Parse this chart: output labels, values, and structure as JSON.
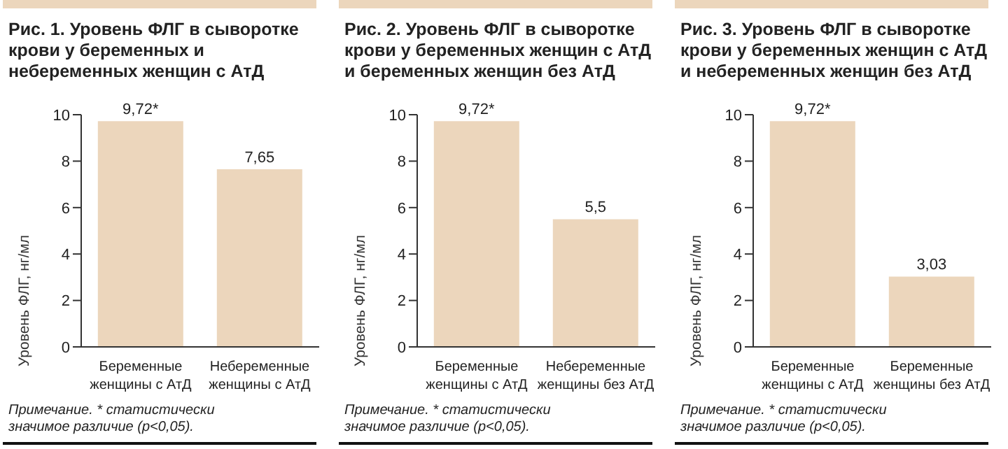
{
  "chart_data": [
    {
      "type": "bar",
      "title": "Рис. 1. Уровень ФЛГ в сыворотке крови у беременных и небеременных женщин с АтД",
      "ylabel": "Уровень ФЛГ, нг/мл",
      "categories": [
        "Беременные женщины с АтД",
        "Небеременные женщины с АтД"
      ],
      "values": [
        9.72,
        7.65
      ],
      "value_labels": [
        "9,72*",
        "7,65"
      ],
      "color": "#ecd6bc",
      "ylim": [
        0,
        10
      ],
      "yticks": [
        0,
        2,
        4,
        6,
        8,
        10
      ],
      "grid": false,
      "annotations": [
        "Примечание. * статистически значимое различие (p<0,05)."
      ]
    },
    {
      "type": "bar",
      "title": "Рис. 2. Уровень ФЛГ в сыворотке крови у беременных женщин с АтД и беременных женщин без АтД",
      "ylabel": "Уровень ФЛГ, нг/мл",
      "categories": [
        "Беременные женщины с АтД",
        "Небеременные женщины без АтД"
      ],
      "values": [
        9.72,
        5.5
      ],
      "value_labels": [
        "9,72*",
        "5,5"
      ],
      "color": "#ecd6bc",
      "ylim": [
        0,
        10
      ],
      "yticks": [
        0,
        2,
        4,
        6,
        8,
        10
      ],
      "grid": false,
      "annotations": [
        "Примечание. * статистически значимое различие (p<0,05)."
      ]
    },
    {
      "type": "bar",
      "title": "Рис. 3. Уровень ФЛГ в сыворотке крови у беременных женщин с АтД и небеременных женщин без АтД",
      "ylabel": "Уровень ФЛГ, нг/мл",
      "categories": [
        "Беременные женщины с АтД",
        "Беременные женщины без АтД"
      ],
      "values": [
        9.72,
        3.03
      ],
      "value_labels": [
        "9,72*",
        "3,03"
      ],
      "color": "#ecd6bc",
      "ylim": [
        0,
        10
      ],
      "yticks": [
        0,
        2,
        4,
        6,
        8,
        10
      ],
      "grid": false,
      "annotations": [
        "Примечание. * статистически значимое различие (p<0,05)."
      ]
    }
  ]
}
